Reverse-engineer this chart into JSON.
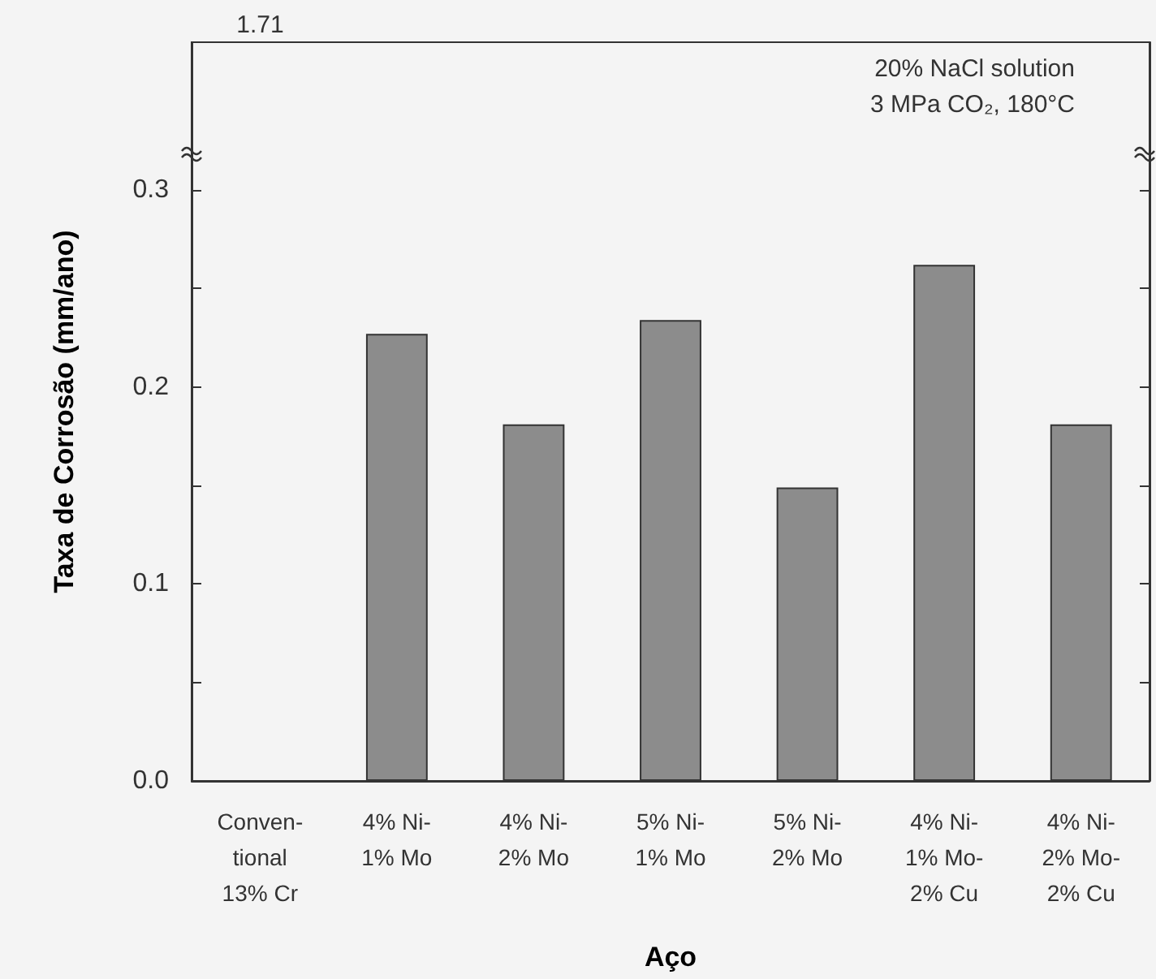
{
  "chart_data": {
    "type": "bar",
    "xlabel": "Aço",
    "ylabel": "Taxa de Corrosão (mm/ano)",
    "annotations": [
      "20% NaCl solution",
      "3 MPa CO₂, 180°C",
      "1.71"
    ],
    "categories": [
      "Conven-\ntional\n13% Cr",
      "4% Ni-\n1% Mo",
      "4% Ni-\n2% Mo",
      "5% Ni-\n1% Mo",
      "5% Ni-\n2% Mo",
      "4% Ni-\n1% Mo-\n2% Cu",
      "4% Ni-\n2% Mo-\n2% Cu"
    ],
    "values": [
      null,
      0.227,
      0.181,
      0.234,
      0.149,
      0.262,
      0.181
    ],
    "color": "#8c8c8c",
    "ylim": [
      0,
      0.375
    ],
    "yticks": [
      {
        "value": 0,
        "label": "0.0"
      },
      {
        "value": 0.05,
        "label": null
      },
      {
        "value": 0.1,
        "label": "0.1"
      },
      {
        "value": 0.15,
        "label": null
      },
      {
        "value": 0.2,
        "label": "0.2"
      },
      {
        "value": 0.25,
        "label": null
      },
      {
        "value": 0.3,
        "label": "0.3"
      }
    ],
    "grid": false
  }
}
